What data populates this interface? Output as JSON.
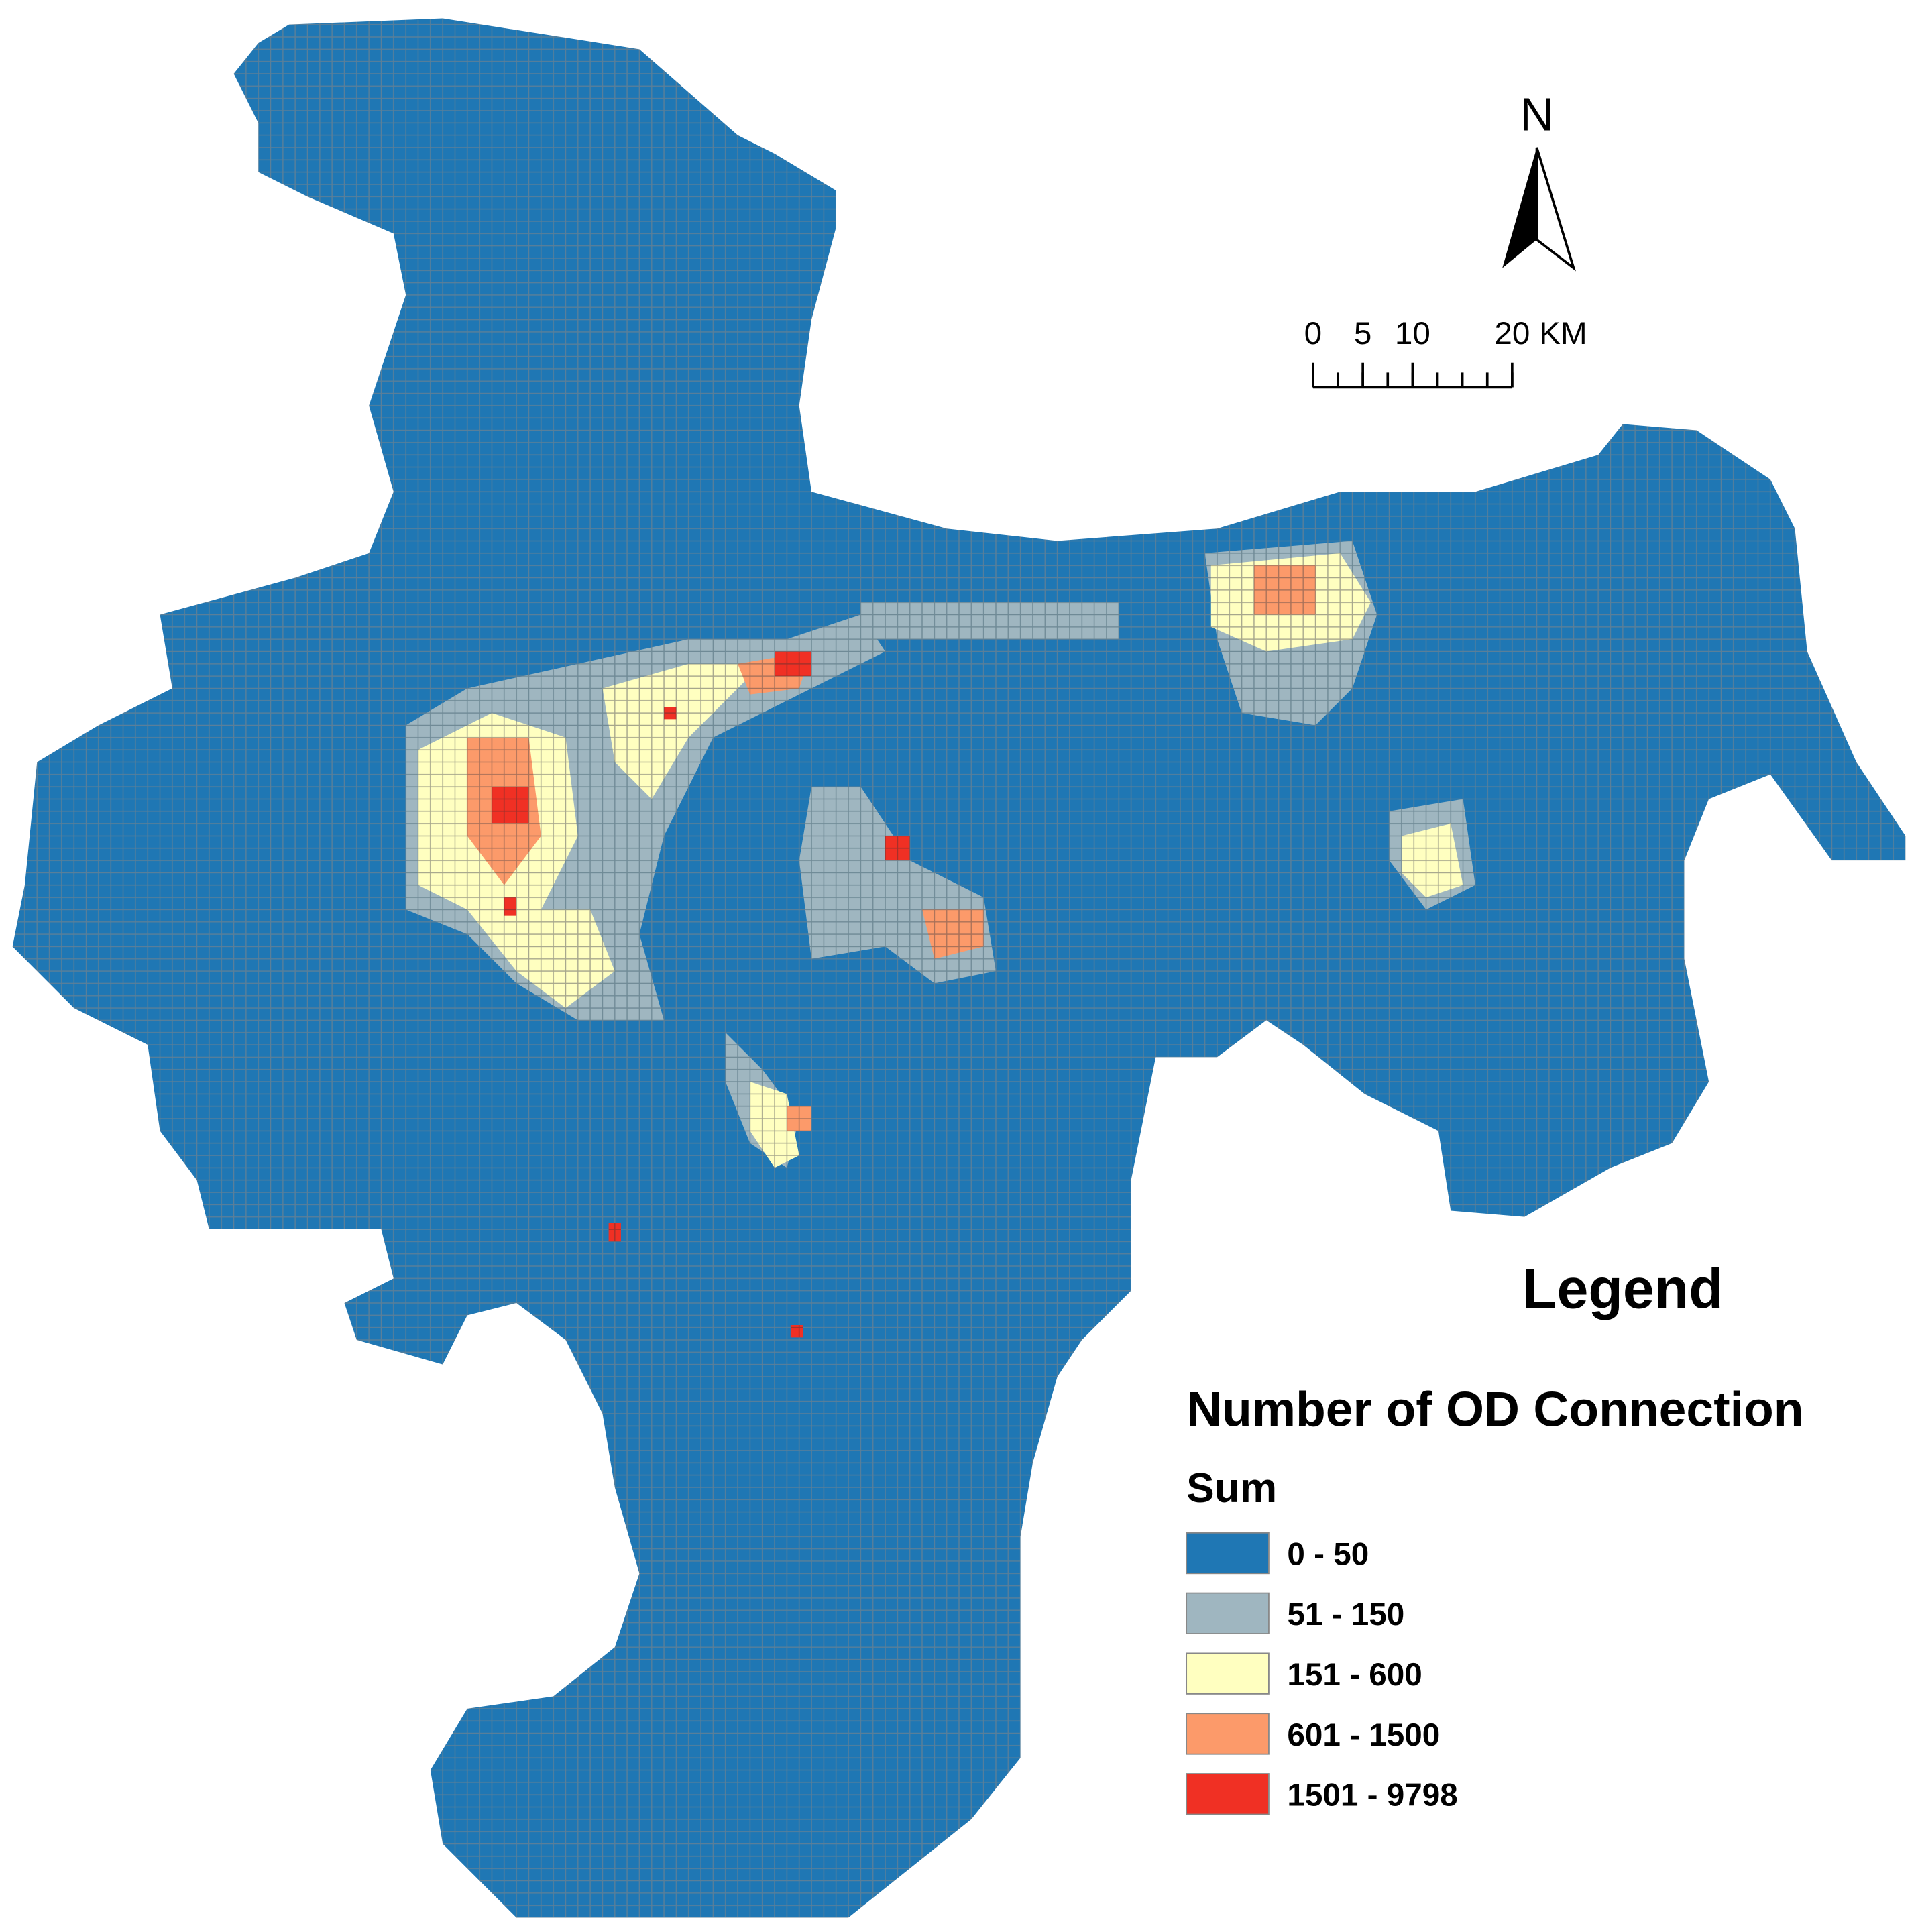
{
  "north_label": "N",
  "scale_bar": {
    "ticks": [
      0,
      5,
      10,
      20
    ],
    "unit": "KM"
  },
  "legend": {
    "title": "Legend",
    "field": "Number of OD Connection",
    "subtitle": "Sum",
    "classes": [
      {
        "label": "0 - 50",
        "color": "#1f77b4"
      },
      {
        "label": "51 - 150",
        "color": "#9fb6c0"
      },
      {
        "label": "151 - 600",
        "color": "#ffffc0"
      },
      {
        "label": "601 - 1500",
        "color": "#fc9a6a"
      },
      {
        "label": "1501 - 9798",
        "color": "#f03024"
      }
    ]
  }
}
